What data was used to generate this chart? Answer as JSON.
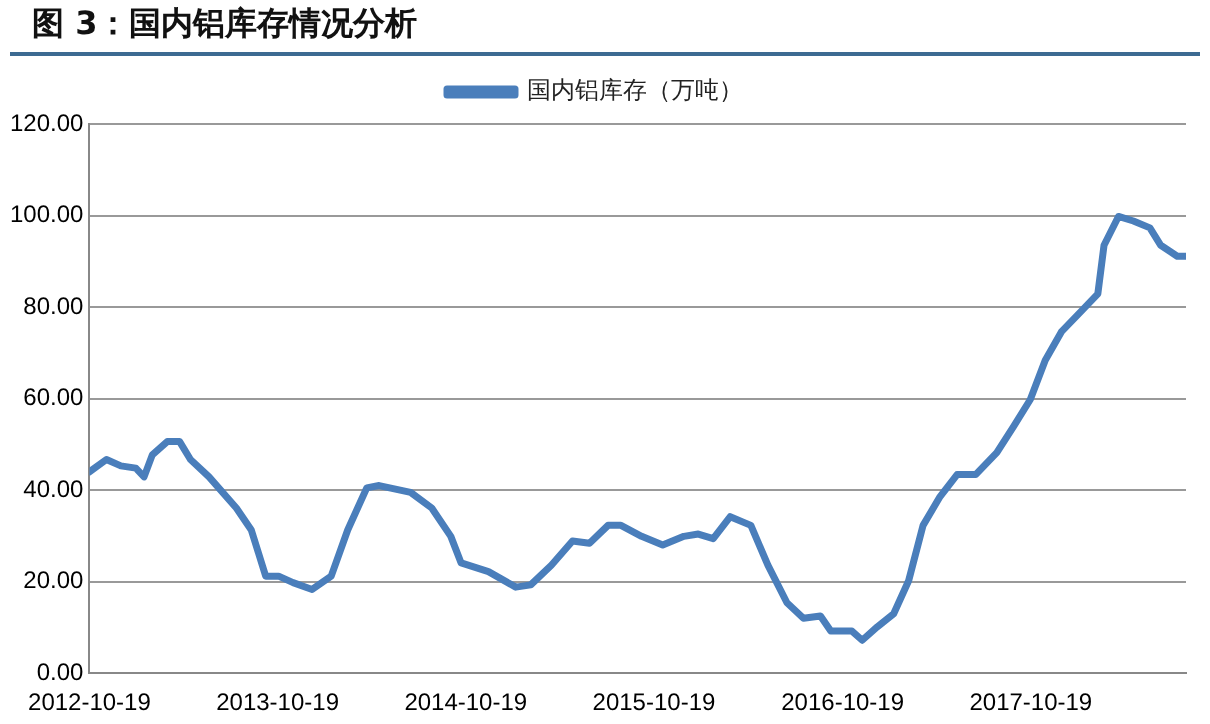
{
  "chart_data": {
    "type": "line",
    "title": "图 3：国内铝库存情况分析",
    "legend": "top",
    "grid": "y",
    "marker": "none",
    "line_style": "solid",
    "x": [
      "2012-10-19",
      "2012-11-21",
      "2012-12-19",
      "2013-01-17",
      "2013-02-02",
      "2013-02-18",
      "2013-03-19",
      "2013-04-12",
      "2013-05-03",
      "2013-06-08",
      "2013-07-31",
      "2013-08-29",
      "2013-09-26",
      "2013-10-21",
      "2013-11-18",
      "2013-12-25",
      "2014-01-31",
      "2014-03-04",
      "2014-04-10",
      "2014-05-04",
      "2014-07-04",
      "2014-08-14",
      "2014-09-20",
      "2014-10-10",
      "2014-12-02",
      "2015-01-24",
      "2015-02-22",
      "2015-04-03",
      "2015-05-14",
      "2015-06-16",
      "2015-07-22",
      "2015-08-16",
      "2015-09-25",
      "2015-11-05",
      "2015-12-16",
      "2016-01-13",
      "2016-02-11",
      "2016-03-15",
      "2016-04-24",
      "2016-05-27",
      "2016-07-03",
      "2016-08-04",
      "2016-09-06",
      "2016-09-26",
      "2016-11-06",
      "2016-11-26",
      "2016-12-25",
      "2017-01-26",
      "2017-02-24",
      "2017-03-24",
      "2017-04-26",
      "2017-05-29",
      "2017-07-04",
      "2017-08-14",
      "2017-09-16",
      "2017-10-18",
      "2017-11-16",
      "2017-12-18",
      "2018-01-24",
      "2018-02-26",
      "2018-03-10",
      "2018-04-07",
      "2018-05-06",
      "2018-06-07",
      "2018-06-28",
      "2018-07-30",
      "2018-08-16"
    ],
    "series": [
      {
        "name": "国内铝库存（万吨）",
        "color": "#4a7ebb",
        "values": [
          44.0,
          46.7,
          45.3,
          44.8,
          42.9,
          47.7,
          50.6,
          50.6,
          46.7,
          42.9,
          36.1,
          31.3,
          21.2,
          21.2,
          19.8,
          18.3,
          21.2,
          31.3,
          40.5,
          41.0,
          39.5,
          36.1,
          29.9,
          24.1,
          22.2,
          18.8,
          19.3,
          23.6,
          28.9,
          28.4,
          32.3,
          32.3,
          29.9,
          28.0,
          29.9,
          30.4,
          29.4,
          34.2,
          32.3,
          23.6,
          15.4,
          12.0,
          12.5,
          9.2,
          9.2,
          7.2,
          10.1,
          13.0,
          20.2,
          32.3,
          38.6,
          43.4,
          43.4,
          48.2,
          54.0,
          59.8,
          68.4,
          74.7,
          79.0,
          82.9,
          93.5,
          99.8,
          98.8,
          97.3,
          93.5,
          91.1,
          91.1
        ]
      }
    ],
    "xlim": [
      "2012-10-19",
      "2018-08-16"
    ],
    "xticks": [
      "2012-10-19",
      "2013-10-19",
      "2014-10-19",
      "2015-10-19",
      "2016-10-19",
      "2017-10-19"
    ],
    "ylim": [
      0,
      120
    ],
    "yticks": [
      {
        "value": 0,
        "label": "0.00"
      },
      {
        "value": 20,
        "label": "20.00"
      },
      {
        "value": 40,
        "label": "40.00"
      },
      {
        "value": 60,
        "label": "60.00"
      },
      {
        "value": 80,
        "label": "80.00"
      },
      {
        "value": 100,
        "label": "100.00"
      },
      {
        "value": 120,
        "label": "120.00"
      }
    ]
  }
}
